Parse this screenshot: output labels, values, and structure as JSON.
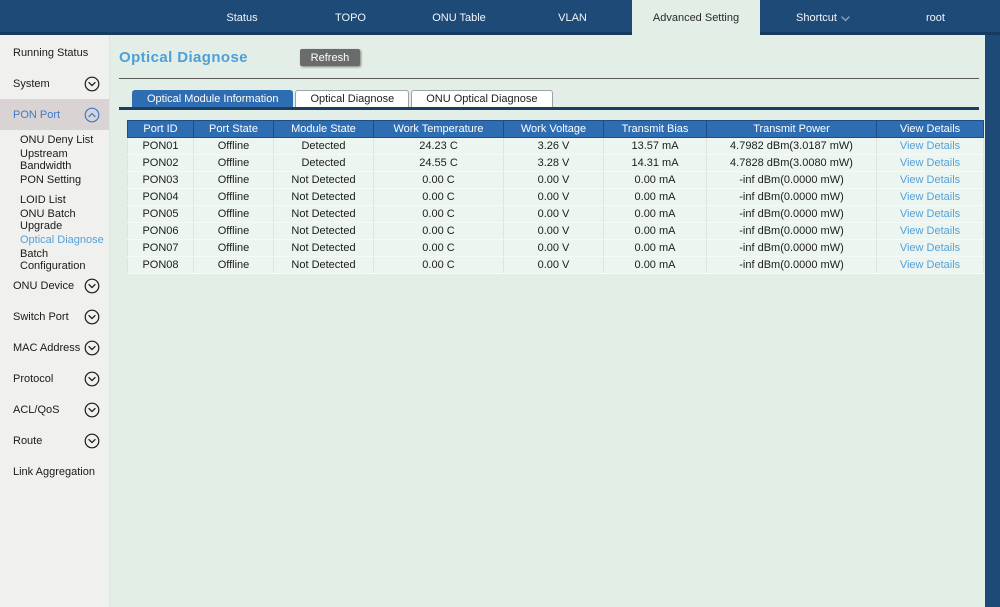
{
  "topnav": {
    "tabs": [
      {
        "label": "Status",
        "active": false,
        "has_chevron": false
      },
      {
        "label": "TOPO",
        "active": false,
        "has_chevron": false
      },
      {
        "label": "ONU Table",
        "active": false,
        "has_chevron": false
      },
      {
        "label": "VLAN",
        "active": false,
        "has_chevron": false
      },
      {
        "label": "Advanced Setting",
        "active": true,
        "has_chevron": false
      },
      {
        "label": "Shortcut",
        "active": false,
        "has_chevron": true
      },
      {
        "label": "root",
        "active": false,
        "has_chevron": false
      }
    ]
  },
  "sidebar": {
    "items": [
      {
        "label": "Running Status",
        "kind": "plain"
      },
      {
        "label": "System",
        "kind": "group",
        "expanded": false,
        "highlighted": false
      },
      {
        "label": "PON Port",
        "kind": "group",
        "expanded": true,
        "highlighted": true,
        "children": [
          {
            "label": "ONU Deny List",
            "selected": false
          },
          {
            "label": "Upstream Bandwidth",
            "selected": false
          },
          {
            "label": "PON Setting",
            "selected": false
          },
          {
            "label": "LOID List",
            "selected": false
          },
          {
            "label": "ONU Batch Upgrade",
            "selected": false
          },
          {
            "label": "Optical Diagnose",
            "selected": true
          },
          {
            "label": "Batch Configuration",
            "selected": false
          }
        ]
      },
      {
        "label": "ONU Device",
        "kind": "group",
        "expanded": false,
        "highlighted": false
      },
      {
        "label": "Switch Port",
        "kind": "group",
        "expanded": false,
        "highlighted": false
      },
      {
        "label": "MAC Address",
        "kind": "group",
        "expanded": false,
        "highlighted": false
      },
      {
        "label": "Protocol",
        "kind": "group",
        "expanded": false,
        "highlighted": false
      },
      {
        "label": "ACL/QoS",
        "kind": "group",
        "expanded": false,
        "highlighted": false
      },
      {
        "label": "Route",
        "kind": "group",
        "expanded": false,
        "highlighted": false
      },
      {
        "label": "Link Aggregation",
        "kind": "plain"
      }
    ]
  },
  "main": {
    "title": "Optical Diagnose",
    "refresh_label": "Refresh",
    "tabs": [
      {
        "label": "Optical Module Information",
        "active": true
      },
      {
        "label": "Optical Diagnose",
        "active": false
      },
      {
        "label": "ONU Optical Diagnose",
        "active": false
      }
    ],
    "table": {
      "headers": [
        "Port ID",
        "Port State",
        "Module State",
        "Work Temperature",
        "Work Voltage",
        "Transmit Bias",
        "Transmit Power",
        "View Details"
      ],
      "rows": [
        [
          "PON01",
          "Offline",
          "Detected",
          "24.23 C",
          "3.26 V",
          "13.57 mA",
          "4.7982 dBm(3.0187 mW)",
          "View Details"
        ],
        [
          "PON02",
          "Offline",
          "Detected",
          "24.55 C",
          "3.28 V",
          "14.31 mA",
          "4.7828 dBm(3.0080 mW)",
          "View Details"
        ],
        [
          "PON03",
          "Offline",
          "Not Detected",
          "0.00 C",
          "0.00 V",
          "0.00 mA",
          "-inf dBm(0.0000 mW)",
          "View Details"
        ],
        [
          "PON04",
          "Offline",
          "Not Detected",
          "0.00 C",
          "0.00 V",
          "0.00 mA",
          "-inf dBm(0.0000 mW)",
          "View Details"
        ],
        [
          "PON05",
          "Offline",
          "Not Detected",
          "0.00 C",
          "0.00 V",
          "0.00 mA",
          "-inf dBm(0.0000 mW)",
          "View Details"
        ],
        [
          "PON06",
          "Offline",
          "Not Detected",
          "0.00 C",
          "0.00 V",
          "0.00 mA",
          "-inf dBm(0.0000 mW)",
          "View Details"
        ],
        [
          "PON07",
          "Offline",
          "Not Detected",
          "0.00 C",
          "0.00 V",
          "0.00 mA",
          "-inf dBm(0.0000 mW)",
          "View Details"
        ],
        [
          "PON08",
          "Offline",
          "Not Detected",
          "0.00 C",
          "0.00 V",
          "0.00 mA",
          "-inf dBm(0.0000 mW)",
          "View Details"
        ]
      ]
    }
  },
  "colors": {
    "nav_bg": "#1e4a78",
    "nav_bottom_line": "#173a60",
    "page_bg": "#e2eee6",
    "sidebar_bg": "#f0f0ee",
    "sidebar_highlight_bg": "#d9d3d3",
    "sidebar_group_blue": "#3d7cc9",
    "accent_blue": "#2e6db2",
    "link_blue": "#54a1d8",
    "button_gray": "#6b6b6b",
    "table_row_bg": "#edf5f0",
    "tab_underline": "#1b3e63"
  }
}
